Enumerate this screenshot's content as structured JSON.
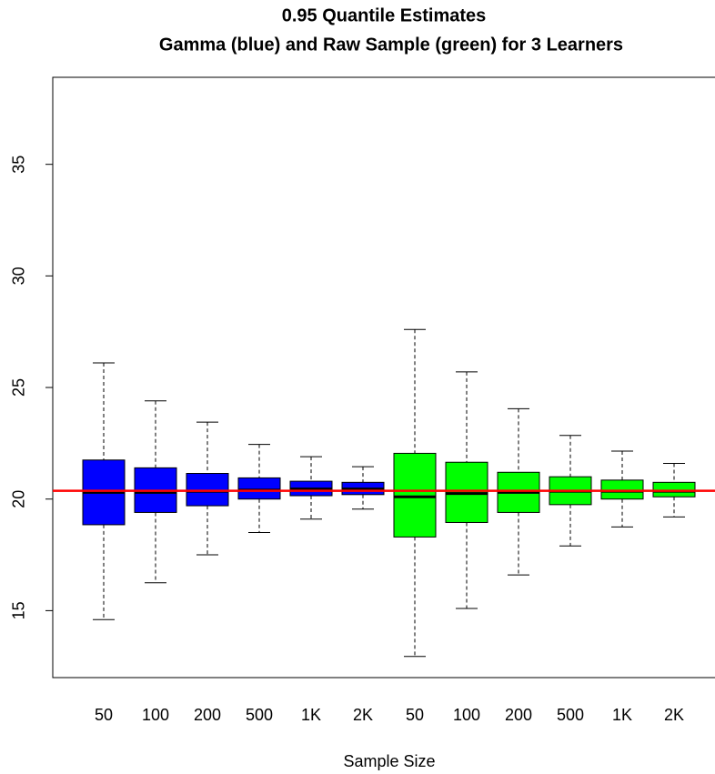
{
  "chart_data": {
    "type": "boxplot",
    "title": "0.95 Quantile Estimates",
    "subtitle": "Gamma (blue) and Raw Sample (green) for 3 Learners",
    "x_label": "Sample Size",
    "categories": [
      "50",
      "100",
      "200",
      "500",
      "1K",
      "2K",
      "50",
      "100",
      "200",
      "500",
      "1K",
      "2K"
    ],
    "boxes": [
      {
        "color": "#0000ff",
        "whislo": 14.6,
        "q1": 18.85,
        "med": 20.3,
        "q3": 21.75,
        "whishi": 26.1
      },
      {
        "color": "#0000ff",
        "whislo": 16.25,
        "q1": 19.4,
        "med": 20.3,
        "q3": 21.4,
        "whishi": 24.4
      },
      {
        "color": "#0000ff",
        "whislo": 17.5,
        "q1": 19.7,
        "med": 20.35,
        "q3": 21.15,
        "whishi": 23.45
      },
      {
        "color": "#0000ff",
        "whislo": 18.5,
        "q1": 20.0,
        "med": 20.4,
        "q3": 20.95,
        "whishi": 22.45
      },
      {
        "color": "#0000ff",
        "whislo": 19.1,
        "q1": 20.15,
        "med": 20.45,
        "q3": 20.8,
        "whishi": 21.9
      },
      {
        "color": "#0000ff",
        "whislo": 19.55,
        "q1": 20.2,
        "med": 20.45,
        "q3": 20.75,
        "whishi": 21.45
      },
      {
        "color": "#00ff00",
        "whislo": 12.95,
        "q1": 18.3,
        "med": 20.1,
        "q3": 22.05,
        "whishi": 27.6
      },
      {
        "color": "#00ff00",
        "whislo": 15.1,
        "q1": 18.95,
        "med": 20.25,
        "q3": 21.65,
        "whishi": 25.7
      },
      {
        "color": "#00ff00",
        "whislo": 16.6,
        "q1": 19.4,
        "med": 20.3,
        "q3": 21.2,
        "whishi": 24.05
      },
      {
        "color": "#00ff00",
        "whislo": 17.9,
        "q1": 19.75,
        "med": 20.35,
        "q3": 21.0,
        "whishi": 22.85
      },
      {
        "color": "#00ff00",
        "whislo": 18.75,
        "q1": 20.0,
        "med": 20.35,
        "q3": 20.85,
        "whishi": 22.15
      },
      {
        "color": "#00ff00",
        "whislo": 19.2,
        "q1": 20.1,
        "med": 20.35,
        "q3": 20.75,
        "whishi": 21.6
      }
    ],
    "hline": {
      "value": 20.37,
      "color": "#ff0000"
    },
    "ylim": [
      12,
      38.9
    ],
    "yticks": [
      15,
      20,
      25,
      30,
      35
    ]
  }
}
